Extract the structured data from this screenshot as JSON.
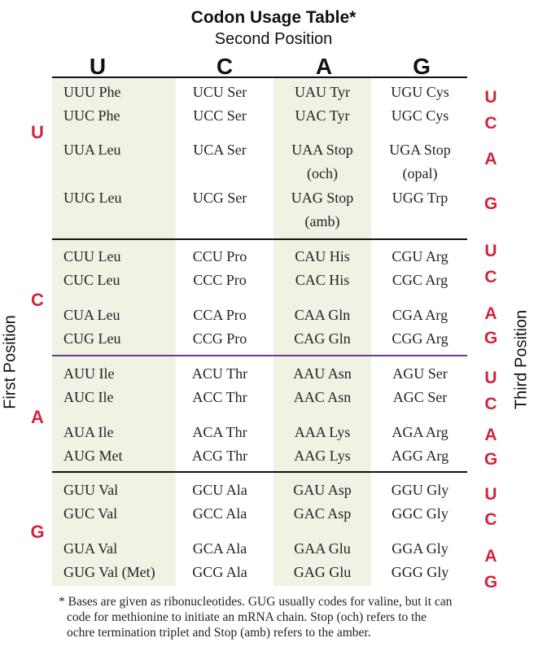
{
  "title": "Codon Usage Table*",
  "subtitle": "Second Position",
  "second_position": [
    "U",
    "C",
    "A",
    "G"
  ],
  "first_position_label": "First Position",
  "third_position_label": "Third Position",
  "first_position": [
    "U",
    "C",
    "A",
    "G"
  ],
  "third_position": [
    "U",
    "C",
    "A",
    "G"
  ],
  "groups": [
    {
      "first": "U",
      "rows": [
        {
          "third": "U",
          "cells": [
            "UUU Phe",
            "UCU Ser",
            "UAU Tyr",
            "UGU Cys"
          ]
        },
        {
          "third": "C",
          "cells": [
            "UUC Phe",
            "UCC Ser",
            "UAC Tyr",
            "UGC Cys"
          ]
        },
        {
          "third": "A",
          "cells": [
            "UUA Leu",
            "UCA Ser",
            "UAA Stop",
            "UGA Stop"
          ],
          "notes": [
            "",
            "",
            "(och)",
            "(opal)"
          ]
        },
        {
          "third": "G",
          "cells": [
            "UUG Leu",
            "UCG Ser",
            "UAG Stop",
            "UGG Trp"
          ],
          "notes": [
            "",
            "",
            "(amb)",
            ""
          ]
        }
      ]
    },
    {
      "first": "C",
      "rows": [
        {
          "third": "U",
          "cells": [
            "CUU Leu",
            "CCU Pro",
            "CAU His",
            "CGU Arg"
          ]
        },
        {
          "third": "C",
          "cells": [
            "CUC Leu",
            "CCC Pro",
            "CAC His",
            "CGC Arg"
          ]
        },
        {
          "third": "A",
          "cells": [
            "CUA Leu",
            "CCA Pro",
            "CAA Gln",
            "CGA Arg"
          ]
        },
        {
          "third": "G",
          "cells": [
            "CUG Leu",
            "CCG Pro",
            "CAG Gln",
            "CGG Arg"
          ]
        }
      ]
    },
    {
      "first": "A",
      "rows": [
        {
          "third": "U",
          "cells": [
            "AUU Ile",
            "ACU Thr",
            "AAU Asn",
            "AGU Ser"
          ]
        },
        {
          "third": "C",
          "cells": [
            "AUC Ile",
            "ACC Thr",
            "AAC Asn",
            "AGC Ser"
          ]
        },
        {
          "third": "A",
          "cells": [
            "AUA Ile",
            "ACA Thr",
            "AAA Lys",
            "AGA Arg"
          ]
        },
        {
          "third": "G",
          "cells": [
            "AUG Met",
            "ACG Thr",
            "AAG Lys",
            "AGG Arg"
          ]
        }
      ]
    },
    {
      "first": "G",
      "rows": [
        {
          "third": "U",
          "cells": [
            "GUU Val",
            "GCU Ala",
            "GAU Asp",
            "GGU Gly"
          ]
        },
        {
          "third": "C",
          "cells": [
            "GUC Val",
            "GCC Ala",
            "GAC Asp",
            "GGC Gly"
          ]
        },
        {
          "third": "A",
          "cells": [
            "GUA Val",
            "GCA Ala",
            "GAA Glu",
            "GGA Gly"
          ]
        },
        {
          "third": "G",
          "cells": [
            "GUG Val (Met)",
            "GCG Ala",
            "GAG Glu",
            "GGG Gly"
          ]
        }
      ]
    }
  ],
  "footnote": [
    "* Bases are given as ribonucleotides. GUG usually codes for valine, but it can",
    "code for methionine to initiate an mRNA chain. Stop (och) refers to the",
    "ochre termination triplet and Stop (amb) refers to the amber."
  ],
  "colors": {
    "accent_red": "#d2233c",
    "band_green": "#eef3e3",
    "divider_purple": "#6a3c8c"
  }
}
